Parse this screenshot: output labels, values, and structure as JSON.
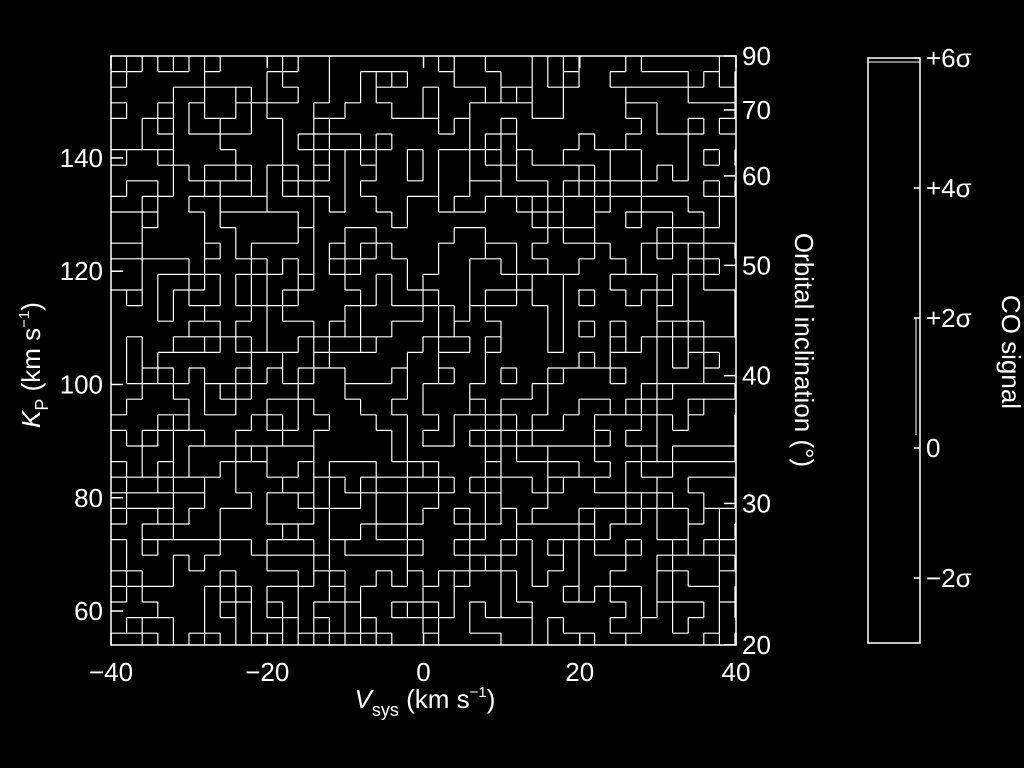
{
  "chart_data": {
    "type": "heatmap",
    "x": {
      "label_main": "V",
      "label_sub": "sys",
      "label_unit_pre": " (km s",
      "label_unit_sup": "−1",
      "label_unit_post": ")",
      "range": [
        -40,
        40
      ],
      "ticks": [
        -40,
        -20,
        0,
        20,
        40
      ],
      "tick_labels": [
        "−40",
        "−20",
        "0",
        "20",
        "40"
      ]
    },
    "y": {
      "label_main": "K",
      "label_sub": "P",
      "label_unit_pre": " (km s",
      "label_unit_sup": "−1",
      "label_unit_post": ")",
      "range": [
        54,
        158
      ],
      "ticks": [
        60,
        80,
        100,
        120,
        140
      ],
      "tick_labels": [
        "60",
        "80",
        "100",
        "120",
        "140"
      ]
    },
    "y2": {
      "label": "Orbital inclination (°)",
      "ticks_deg": [
        20,
        30,
        40,
        50,
        60,
        70,
        90
      ],
      "tick_labels": [
        "20",
        "30",
        "40",
        "50",
        "60",
        "70",
        "90"
      ],
      "kp_at_90deg": 158
    },
    "colorbar": {
      "label": "CO signal",
      "range_sigma": [
        -3,
        6
      ],
      "ticks": [
        -2,
        0,
        2,
        4,
        6
      ],
      "tick_labels": [
        "−2σ",
        "0",
        "+2σ",
        "+4σ",
        "+6σ"
      ]
    },
    "grid": false,
    "legend": "none",
    "style": {
      "background": "#000000",
      "foreground": "#ffffff"
    }
  }
}
